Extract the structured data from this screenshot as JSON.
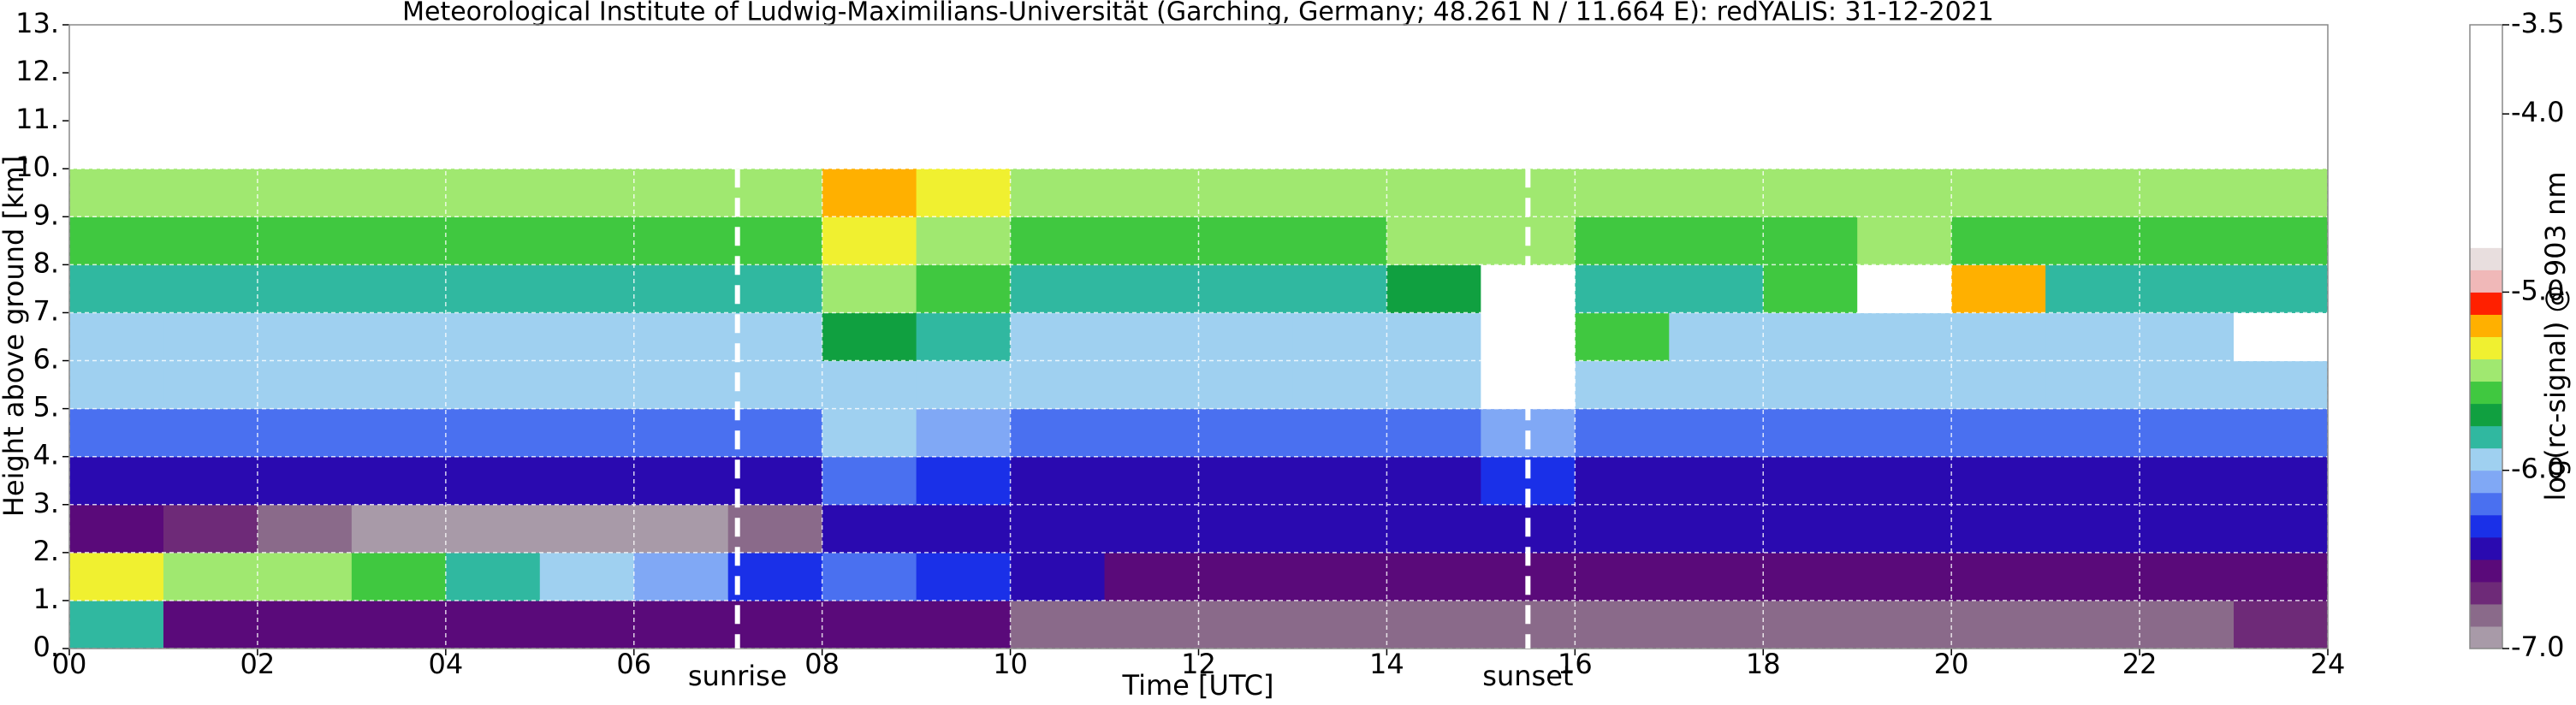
{
  "chart_data": {
    "type": "heatmap",
    "title": "Meteorological Institute of Ludwig-Maximilians-Universität (Garching, Germany; 48.261 N / 11.664 E):    redYALIS: 31-12-2021",
    "xlabel": "Time [UTC]",
    "ylabel": "Height above ground [km]",
    "colorbar_label": "log(rc-signal) @ 903 nm",
    "xlim": [
      0,
      24
    ],
    "ylim": [
      0,
      13
    ],
    "clim": [
      -7,
      -3.5
    ],
    "xticks": [
      {
        "value": 0,
        "label": "00"
      },
      {
        "value": 2,
        "label": "02"
      },
      {
        "value": 4,
        "label": "04"
      },
      {
        "value": 6,
        "label": "06"
      },
      {
        "value": 8,
        "label": "08"
      },
      {
        "value": 10,
        "label": "10"
      },
      {
        "value": 12,
        "label": "12"
      },
      {
        "value": 14,
        "label": "14"
      },
      {
        "value": 16,
        "label": "16"
      },
      {
        "value": 18,
        "label": "18"
      },
      {
        "value": 20,
        "label": "20"
      },
      {
        "value": 22,
        "label": "22"
      },
      {
        "value": 24,
        "label": "24"
      }
    ],
    "yticks": [
      {
        "value": 0,
        "label": "0."
      },
      {
        "value": 1,
        "label": "1."
      },
      {
        "value": 2,
        "label": "2."
      },
      {
        "value": 3,
        "label": "3."
      },
      {
        "value": 4,
        "label": "4."
      },
      {
        "value": 5,
        "label": "5."
      },
      {
        "value": 6,
        "label": "6."
      },
      {
        "value": 7,
        "label": "7."
      },
      {
        "value": 8,
        "label": "8."
      },
      {
        "value": 9,
        "label": "9."
      },
      {
        "value": 10,
        "label": "10."
      },
      {
        "value": 11,
        "label": "11."
      },
      {
        "value": 12,
        "label": "12."
      },
      {
        "value": 13,
        "label": "13."
      }
    ],
    "cticks": [
      {
        "value": -7,
        "label": "-7.0"
      },
      {
        "value": -6,
        "label": "-6.0"
      },
      {
        "value": -5,
        "label": "-5.0"
      },
      {
        "value": -4,
        "label": "-4.0"
      },
      {
        "value": -3.5,
        "label": "-3.5"
      }
    ],
    "grid": true,
    "colormap": [
      "#a89aa8",
      "#8a6a8a",
      "#6e2a78",
      "#5a0a7a",
      "#2a0ab0",
      "#1a30e8",
      "#4a70f0",
      "#80a8f5",
      "#9fd0f0",
      "#30b8a0",
      "#10a040",
      "#40c840",
      "#a0e870",
      "#f0f030",
      "#ffb000",
      "#ff2000",
      "#f0b8b8",
      "#e8dede",
      "#ffffff",
      "#ffffff",
      "#ffffff",
      "#ffffff",
      "#ffffff",
      "#ffffff",
      "#ffffff",
      "#ffffff",
      "#ffffff",
      "#ffffff"
    ],
    "x_edges": [
      0,
      1,
      2,
      3,
      4,
      5,
      6,
      7,
      8,
      9,
      10,
      11,
      12,
      13,
      14,
      15,
      16,
      17,
      18,
      19,
      20,
      21,
      22,
      23,
      24
    ],
    "y_edges": [
      0,
      1,
      2,
      3,
      4,
      5,
      6,
      7,
      8,
      9,
      10
    ],
    "z": [
      [
        -5.8,
        -6.6,
        -6.6,
        -6.6,
        -6.6,
        -6.6,
        -6.6,
        -6.6,
        -6.6,
        -6.6,
        -6.8,
        -6.8,
        -6.8,
        -6.8,
        -6.8,
        -6.8,
        -6.8,
        -6.8,
        -6.8,
        -6.8,
        -6.8,
        -6.8,
        -6.8,
        -6.7
      ],
      [
        -5.3,
        -5.4,
        -5.5,
        -5.6,
        -5.8,
        -6.0,
        -6.1,
        -6.3,
        -6.2,
        -6.3,
        -6.5,
        -6.6,
        -6.6,
        -6.6,
        -6.6,
        -6.6,
        -6.6,
        -6.6,
        -6.6,
        -6.6,
        -6.6,
        -6.6,
        -6.6,
        -6.6
      ],
      [
        -6.6,
        -6.7,
        -6.8,
        -6.9,
        -7.0,
        -7.0,
        -7.0,
        -6.8,
        -6.5,
        -6.5,
        -6.5,
        -6.5,
        -6.5,
        -6.5,
        -6.5,
        -6.5,
        -6.5,
        -6.5,
        -6.5,
        -6.5,
        -6.5,
        -6.5,
        -6.4,
        -6.5
      ],
      [
        -6.4,
        -6.4,
        -6.4,
        -6.4,
        -6.4,
        -6.4,
        -6.4,
        -6.4,
        -6.2,
        -6.3,
        -6.4,
        -6.4,
        -6.4,
        -6.4,
        -6.4,
        -6.3,
        -6.4,
        -6.4,
        -6.4,
        -6.4,
        -6.4,
        -6.4,
        -6.4,
        -6.4
      ],
      [
        -6.2,
        -6.2,
        -6.2,
        -6.2,
        -6.2,
        -6.2,
        -6.2,
        -6.2,
        -6.0,
        -6.1,
        -6.2,
        -6.2,
        -6.2,
        -6.2,
        -6.2,
        -6.1,
        -6.2,
        -6.2,
        -6.2,
        -6.2,
        -6.2,
        -6.2,
        -6.2,
        -6.2
      ],
      [
        -6.0,
        -6.0,
        -6.0,
        -6.0,
        -6.0,
        -6.0,
        -6.0,
        -6.0,
        -5.9,
        -5.9,
        -6.0,
        -6.0,
        -6.0,
        -6.0,
        -6.0,
        -4.6,
        -5.9,
        -6.0,
        -6.0,
        -6.0,
        -6.0,
        -6.0,
        -6.0,
        -6.0
      ],
      [
        -5.9,
        -5.9,
        -5.9,
        -5.9,
        -5.9,
        -5.9,
        -5.9,
        -5.9,
        -5.7,
        -5.8,
        -5.9,
        -5.9,
        -5.9,
        -5.9,
        -5.9,
        -4.5,
        -5.6,
        -5.9,
        -5.9,
        -5.9,
        -5.9,
        -5.9,
        -5.9,
        -4.6
      ],
      [
        -5.8,
        -5.8,
        -5.8,
        -5.8,
        -5.8,
        -5.8,
        -5.8,
        -5.8,
        -5.5,
        -5.6,
        -5.8,
        -5.8,
        -5.8,
        -5.8,
        -5.7,
        -4.5,
        -5.8,
        -5.8,
        -5.6,
        -4.5,
        -5.2,
        -5.8,
        -5.8,
        -5.8
      ],
      [
        -5.6,
        -5.6,
        -5.6,
        -5.6,
        -5.6,
        -5.6,
        -5.6,
        -5.6,
        -5.3,
        -5.4,
        -5.6,
        -5.6,
        -5.6,
        -5.6,
        -5.5,
        -5.5,
        -5.6,
        -5.6,
        -5.6,
        -5.4,
        -5.6,
        -5.6,
        -5.6,
        -5.6
      ],
      [
        -5.5,
        -5.5,
        -5.5,
        -5.5,
        -5.5,
        -5.5,
        -5.5,
        -5.5,
        -5.2,
        -5.3,
        -5.5,
        -5.5,
        -5.5,
        -5.5,
        -5.4,
        -5.4,
        -5.5,
        -5.5,
        -5.5,
        -5.5,
        -5.5,
        -5.5,
        -5.5,
        -5.5
      ]
    ],
    "annotations": [
      {
        "text": "sunrise",
        "x": 7.1
      },
      {
        "text": "sunset",
        "x": 15.5
      }
    ]
  }
}
